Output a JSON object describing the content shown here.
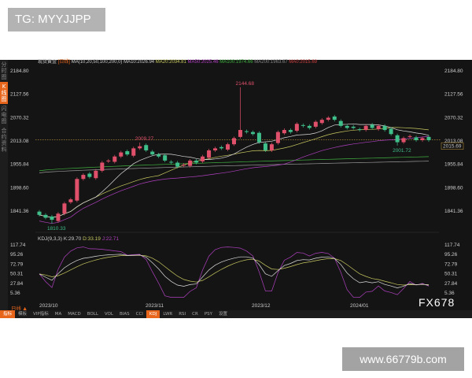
{
  "overlay": {
    "tg": "TG: MYYJJPP",
    "fx": "FX678",
    "site": "www.66779b.com"
  },
  "sidebar": [
    {
      "label": "分时图",
      "active": false
    },
    {
      "label": "K线图",
      "active": true
    },
    {
      "label": "闪电图",
      "active": false
    },
    {
      "label": "合约资料",
      "active": false
    }
  ],
  "header": {
    "symbol": "现货黄金",
    "period": "[日线]",
    "ma_params": "MA(10,20,50,100,200,0)",
    "ma10": "MA10:2026.94",
    "ma20": "MA20:2034.81",
    "ma50": "MA50:2025.46",
    "ma100": "MA100:1974.66",
    "ma200": "MA200:1963.67",
    "ma0": "MA0:2015.69"
  },
  "kdj": {
    "params": "KDJ(9,3,3)",
    "k": "K:29.70",
    "d": "D:33.19",
    "j": "J:22.71"
  },
  "period_label": "日线 ▲",
  "tabs": [
    {
      "label": "指标",
      "active": true
    },
    {
      "label": "模板"
    },
    {
      "label": "VIP指标"
    },
    {
      "label": "MA"
    },
    {
      "label": "MACD"
    },
    {
      "label": "BOLL"
    },
    {
      "label": "VOL"
    },
    {
      "label": "BIAS"
    },
    {
      "label": "CCI"
    },
    {
      "label": "KDJ",
      "active": true
    },
    {
      "label": "LWR"
    },
    {
      "label": "RSI"
    },
    {
      "label": "CR"
    },
    {
      "label": "PSY"
    },
    {
      "label": "设置"
    }
  ],
  "colors": {
    "up": "#e0506a",
    "down": "#3fbf8a",
    "ma10": "#dddddd",
    "ma20": "#c8c860",
    "ma50": "#b040c0",
    "ma100": "#40b040",
    "ma200": "#999999",
    "ma0": "#d04040",
    "accent": "#e8661c"
  },
  "chart_data": {
    "type": "candlestick",
    "price_ticks": [
      "2184.80",
      "2127.56",
      "2070.32",
      "2013.08",
      "1955.84",
      "1898.60",
      "1841.36"
    ],
    "kdj_ticks": [
      "117.74",
      "95.26",
      "72.79",
      "50.31",
      "27.84",
      "5.36"
    ],
    "x_ticks": [
      "2023/10",
      "2023/11",
      "2023/12",
      "2024/01"
    ],
    "last_price": "2015.69",
    "annotations": [
      {
        "label": "2144.68",
        "index": 32
      },
      {
        "label": "1810.33",
        "index": 2
      },
      {
        "label": "2009.27",
        "index": 16
      },
      {
        "label": "2001.72",
        "index": 57
      }
    ],
    "close": [
      1832,
      1825,
      1820,
      1835,
      1860,
      1870,
      1920,
      1930,
      1925,
      1940,
      1960,
      1965,
      1975,
      1985,
      1980,
      1995,
      2000,
      1990,
      1980,
      1975,
      1965,
      1960,
      1950,
      1955,
      1965,
      1960,
      1975,
      1990,
      1995,
      1995,
      2005,
      2020,
      2040,
      2035,
      2030,
      2010,
      1990,
      2005,
      2035,
      2040,
      2035,
      2055,
      2050,
      2045,
      2060,
      2065,
      2070,
      2065,
      2050,
      2045,
      2045,
      2040,
      2050,
      2045,
      2050,
      2040,
      2030,
      2010,
      2020,
      2025,
      2015,
      2020,
      2015
    ],
    "ma50_end": 2025.46,
    "ma100_end": 1974.66,
    "ma200_end": 1963.67
  }
}
